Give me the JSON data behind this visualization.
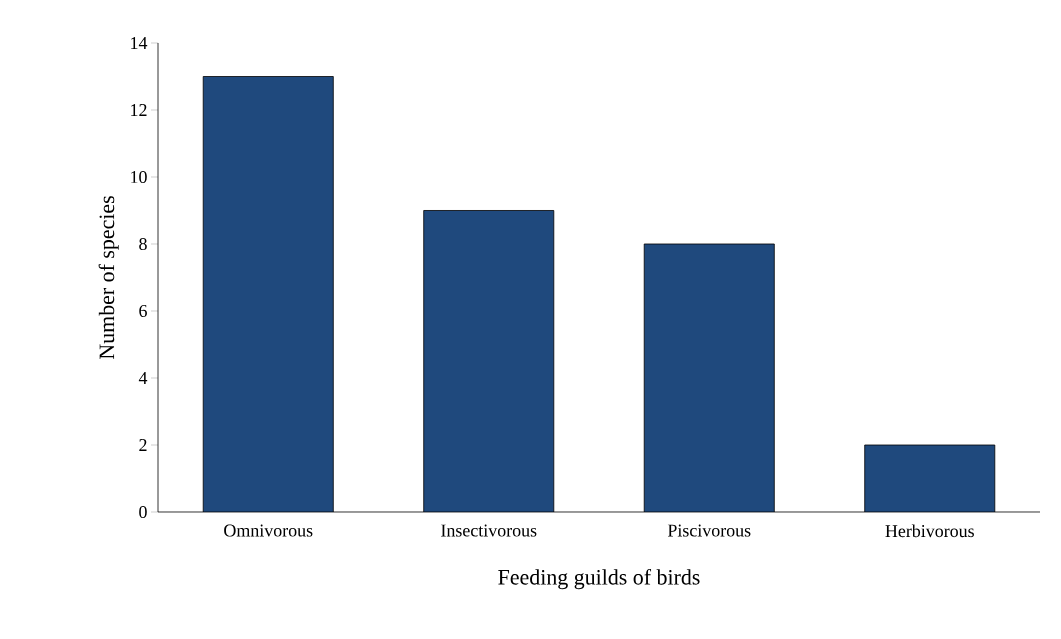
{
  "chart_data": {
    "type": "bar",
    "xlabel": "Feeding guilds of birds",
    "ylabel": "Number of species",
    "categories": [
      "Omnivorous",
      "Insectivorous",
      "Piscivorous",
      "Herbivorous"
    ],
    "values": [
      13,
      9,
      8,
      2
    ],
    "color": "#1f497d",
    "ylim": [
      0,
      14
    ],
    "yticks": [
      0,
      2,
      4,
      6,
      8,
      10,
      12,
      14
    ]
  }
}
